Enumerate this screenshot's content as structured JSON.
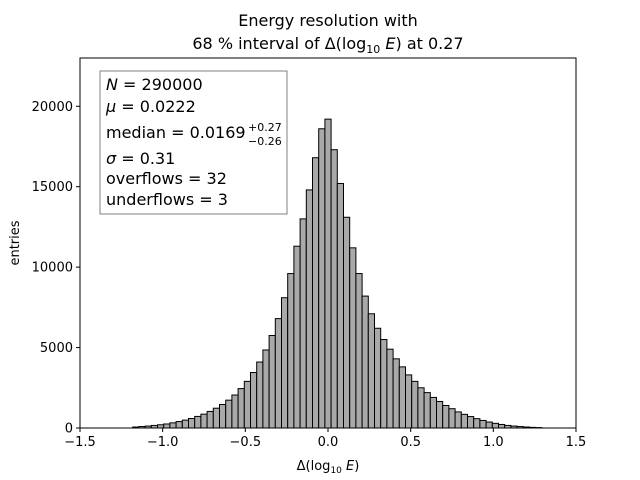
{
  "chart_data": {
    "type": "bar",
    "title": "Energy resolution with",
    "subtitle_prefix": "68 % interval of ",
    "subtitle_quantity": "Δ(log",
    "subtitle_sub": "10",
    "subtitle_var": " E",
    "subtitle_close": ")",
    "subtitle_suffix": " at 0.27",
    "xlabel_prefix": "Δ(log",
    "xlabel_sub": "10",
    "xlabel_var": " E",
    "xlabel_close": ")",
    "ylabel": "entries",
    "xlim": [
      -1.5,
      1.5
    ],
    "ylim": [
      0,
      23000
    ],
    "bin_width": 0.0375,
    "xticks": [
      "-1.5",
      "-1.0",
      "-0.5",
      "0.0",
      "0.5",
      "1.0",
      "1.5"
    ],
    "xtick_values": [
      -1.5,
      -1.0,
      -0.5,
      0.0,
      0.5,
      1.0,
      1.5
    ],
    "yticks": [
      "0",
      "5000",
      "10000",
      "15000",
      "20000"
    ],
    "ytick_values": [
      0,
      5000,
      10000,
      15000,
      20000
    ],
    "bars": [
      {
        "x": -1.1625,
        "value": 60
      },
      {
        "x": -1.125,
        "value": 90
      },
      {
        "x": -1.0875,
        "value": 120
      },
      {
        "x": -1.05,
        "value": 160
      },
      {
        "x": -1.0125,
        "value": 200
      },
      {
        "x": -0.975,
        "value": 250
      },
      {
        "x": -0.9375,
        "value": 320
      },
      {
        "x": -0.9,
        "value": 400
      },
      {
        "x": -0.8625,
        "value": 490
      },
      {
        "x": -0.825,
        "value": 590
      },
      {
        "x": -0.7875,
        "value": 720
      },
      {
        "x": -0.75,
        "value": 860
      },
      {
        "x": -0.7125,
        "value": 1030
      },
      {
        "x": -0.675,
        "value": 1230
      },
      {
        "x": -0.6375,
        "value": 1460
      },
      {
        "x": -0.6,
        "value": 1730
      },
      {
        "x": -0.5625,
        "value": 2050
      },
      {
        "x": -0.525,
        "value": 2450
      },
      {
        "x": -0.4875,
        "value": 2900
      },
      {
        "x": -0.45,
        "value": 3450
      },
      {
        "x": -0.4125,
        "value": 4100
      },
      {
        "x": -0.375,
        "value": 4850
      },
      {
        "x": -0.3375,
        "value": 5750
      },
      {
        "x": -0.3,
        "value": 6800
      },
      {
        "x": -0.2625,
        "value": 8100
      },
      {
        "x": -0.225,
        "value": 9600
      },
      {
        "x": -0.1875,
        "value": 11300
      },
      {
        "x": -0.15,
        "value": 13000
      },
      {
        "x": -0.1125,
        "value": 14800
      },
      {
        "x": -0.075,
        "value": 16800
      },
      {
        "x": -0.0375,
        "value": 18600
      },
      {
        "x": 0.0,
        "value": 19200
      },
      {
        "x": 0.0375,
        "value": 17300
      },
      {
        "x": 0.075,
        "value": 15200
      },
      {
        "x": 0.1125,
        "value": 13100
      },
      {
        "x": 0.15,
        "value": 11200
      },
      {
        "x": 0.1875,
        "value": 9600
      },
      {
        "x": 0.225,
        "value": 8200
      },
      {
        "x": 0.2625,
        "value": 7100
      },
      {
        "x": 0.3,
        "value": 6200
      },
      {
        "x": 0.3375,
        "value": 5500
      },
      {
        "x": 0.375,
        "value": 4900
      },
      {
        "x": 0.4125,
        "value": 4300
      },
      {
        "x": 0.45,
        "value": 3800
      },
      {
        "x": 0.4875,
        "value": 3300
      },
      {
        "x": 0.525,
        "value": 2900
      },
      {
        "x": 0.5625,
        "value": 2500
      },
      {
        "x": 0.6,
        "value": 2200
      },
      {
        "x": 0.6375,
        "value": 1900
      },
      {
        "x": 0.675,
        "value": 1650
      },
      {
        "x": 0.7125,
        "value": 1400
      },
      {
        "x": 0.75,
        "value": 1200
      },
      {
        "x": 0.7875,
        "value": 1000
      },
      {
        "x": 0.825,
        "value": 850
      },
      {
        "x": 0.8625,
        "value": 710
      },
      {
        "x": 0.9,
        "value": 580
      },
      {
        "x": 0.9375,
        "value": 470
      },
      {
        "x": 0.975,
        "value": 370
      },
      {
        "x": 1.0125,
        "value": 290
      },
      {
        "x": 1.05,
        "value": 220
      },
      {
        "x": 1.0875,
        "value": 160
      },
      {
        "x": 1.125,
        "value": 120
      },
      {
        "x": 1.1625,
        "value": 90
      },
      {
        "x": 1.2,
        "value": 60
      },
      {
        "x": 1.2375,
        "value": 40
      },
      {
        "x": 1.275,
        "value": 25
      }
    ],
    "bar_fill": "#a9a9a9",
    "bar_stroke": "#000000",
    "legend_position": "top-left",
    "stats": {
      "n_label": "N",
      "n_value": "290000",
      "mu_label": "μ",
      "mu_value": "0.0222",
      "median_label": "median",
      "median_value": "0.0169",
      "median_plus": "+0.27",
      "median_minus": "−0.26",
      "sigma_label": "σ",
      "sigma_value": "0.31",
      "overflows_label": "overflows",
      "overflows_value": "32",
      "underflows_label": "underflows",
      "underflows_value": "3"
    }
  }
}
